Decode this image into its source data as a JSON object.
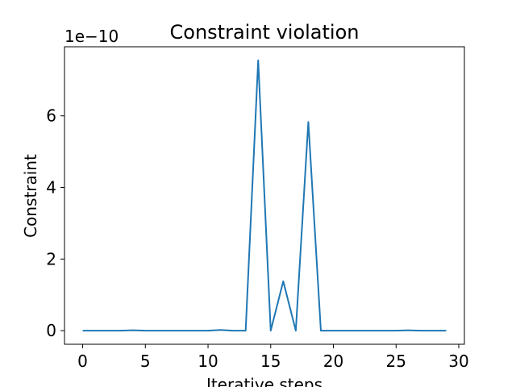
{
  "chart_data": {
    "type": "line",
    "title": "Constraint violation",
    "xlabel": "Iterative steps",
    "ylabel": "Constraint",
    "offset_text": "1e−10",
    "x_ticks": [
      "0",
      "5",
      "10",
      "15",
      "20",
      "25",
      "30"
    ],
    "y_ticks": [
      "0",
      "2",
      "4",
      "6"
    ],
    "xlim": [
      -1.45,
      30.45
    ],
    "ylim": [
      -0.38,
      7.93
    ],
    "y_scale_note": "values in units of 1e-10",
    "grid": false,
    "series": [
      {
        "color": "#1f77b4",
        "x": [
          0,
          1,
          2,
          3,
          4,
          5,
          6,
          7,
          8,
          9,
          10,
          11,
          12,
          13,
          14,
          15,
          16,
          17,
          18,
          19,
          20,
          21,
          22,
          23,
          24,
          25,
          26,
          27,
          28,
          29
        ],
        "y": [
          0,
          0,
          0,
          0,
          0.01,
          0,
          0,
          0,
          0,
          0,
          0,
          0.02,
          0,
          0,
          7.55,
          0,
          1.38,
          0,
          5.83,
          0,
          0,
          0,
          0,
          0,
          0,
          0,
          0.01,
          0,
          0,
          0
        ]
      }
    ]
  }
}
